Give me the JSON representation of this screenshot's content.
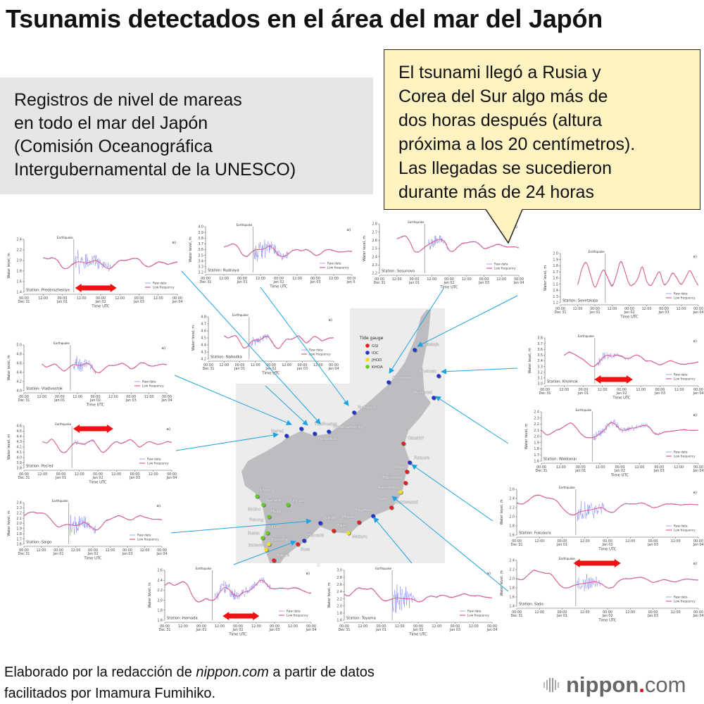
{
  "title": "Tsunamis detectados en el área del mar del Japón",
  "source_box": {
    "lines": [
      "Registros de nivel de mareas",
      "en todo el mar del Japón",
      "(Comisión Oceanográfica",
      "Intergubernamental de la UNESCO)"
    ]
  },
  "callout": {
    "lines": [
      "El tsunami llegó a Rusia y",
      "Corea del Sur algo más de",
      "dos horas después (altura",
      "próxima a los 20 centímetros).",
      "Las llegadas se sucedieron",
      "durante más de 24 horas"
    ],
    "color": "#fff3c2"
  },
  "footer": {
    "prefix": "Elaborado por la redacción de ",
    "site": "nippon.com",
    "suffix": " a partir de datos",
    "line2": "facilitados por Imamura Fumihiko."
  },
  "logo": {
    "word": "nippon",
    "dot": ".",
    "tld": "com"
  },
  "map": {
    "legend_title": "Tide gauge",
    "agencies": [
      {
        "name": "GSI",
        "color": "#e02020"
      },
      {
        "name": "IOC",
        "color": "#2233cc"
      },
      {
        "name": "JHOD",
        "color": "#f0e020"
      },
      {
        "name": "KHOA",
        "color": "#66cc22"
      }
    ],
    "stations": [
      {
        "name": "Sovetskaja",
        "agency": "IOC"
      },
      {
        "name": "Kholmsk",
        "agency": "IOC"
      },
      {
        "name": "Sosunovo",
        "agency": "IOC"
      },
      {
        "name": "Wakkanai",
        "agency": "IOC"
      },
      {
        "name": "Rudnaya",
        "agency": "IOC"
      },
      {
        "name": "Vladivostok",
        "agency": "IOC"
      },
      {
        "name": "Nahodka",
        "agency": "IOC"
      },
      {
        "name": "Preobrazheniye",
        "agency": "IOC"
      },
      {
        "name": "Pos'ed",
        "agency": "IOC"
      },
      {
        "name": "Okushiri",
        "agency": "GSI"
      },
      {
        "name": "Fukuura",
        "agency": "IOC"
      },
      {
        "name": "Oga",
        "agency": "GSI"
      },
      {
        "name": "Tobishima",
        "agency": "GSI"
      },
      {
        "name": "Awashima",
        "agency": "JHOD"
      },
      {
        "name": "Sado",
        "agency": ""
      },
      {
        "name": "Kashiwazaki",
        "agency": "GSI"
      },
      {
        "name": "Toyama",
        "agency": "IOC"
      },
      {
        "name": "Mikuni",
        "agency": "GSI"
      },
      {
        "name": "Tajiri",
        "agency": "GSI"
      },
      {
        "name": "Maizuru",
        "agency": "JHOD"
      },
      {
        "name": "Saigo",
        "agency": "IOC"
      },
      {
        "name": "Hamada",
        "agency": "IOC"
      },
      {
        "name": "Susa",
        "agency": "GSI"
      },
      {
        "name": "Kariya",
        "agency": "GSI"
      },
      {
        "name": "Tushima",
        "agency": "JHOD"
      },
      {
        "name": "Izuhara",
        "agency": "JHOD"
      },
      {
        "name": "Busan",
        "agency": "KHOA"
      },
      {
        "name": "Ulsan",
        "agency": "KHOA"
      },
      {
        "name": "Pohong",
        "agency": ""
      },
      {
        "name": "Hupo",
        "agency": "KHOA"
      },
      {
        "name": "Mukho",
        "agency": "KHOA"
      },
      {
        "name": "Ganwon",
        "agency": ""
      },
      {
        "name": "Shocho",
        "agency": "KHOA"
      },
      {
        "name": "Ulleung",
        "agency": "KHOA"
      }
    ]
  },
  "chart_data": {
    "type": "line",
    "xlabel": "Time UTC",
    "ylabel": "Water level, m",
    "panel_label": "a)",
    "earthquake_label": "Earthquake",
    "earthquake_time": "Jan 01 07:10",
    "legend": [
      "Raw data",
      "Low frequency"
    ],
    "legend_placement": "bottom-right",
    "colors": {
      "raw": "#3a44ee",
      "low_frequency": "#e0507a",
      "arrival_arrow": "#ee1111"
    },
    "x_ticks": [
      {
        "time": "00:00",
        "date": "Dec 31"
      },
      {
        "time": "12:00",
        "date": ""
      },
      {
        "time": "00:00",
        "date": "Jan 01"
      },
      {
        "time": "12:00",
        "date": ""
      },
      {
        "time": "00:00",
        "date": "Jan 02"
      },
      {
        "time": "12:00",
        "date": ""
      },
      {
        "time": "00:00",
        "date": "Jan 03"
      },
      {
        "time": "12:00",
        "date": ""
      },
      {
        "time": "00:00",
        "date": "Jan 04"
      }
    ],
    "x": [
      "Dec 31 00:00",
      "Dec 31 03:00",
      "Dec 31 06:00",
      "Dec 31 09:00",
      "Dec 31 12:00",
      "Dec 31 15:00",
      "Dec 31 18:00",
      "Dec 31 21:00",
      "Jan 01 00:00",
      "Jan 01 03:00",
      "Jan 01 06:00",
      "Jan 01 09:00",
      "Jan 01 12:00",
      "Jan 01 15:00",
      "Jan 01 18:00",
      "Jan 01 21:00",
      "Jan 02 00:00",
      "Jan 02 03:00",
      "Jan 02 06:00",
      "Jan 02 09:00",
      "Jan 02 12:00",
      "Jan 02 15:00",
      "Jan 02 18:00",
      "Jan 02 21:00",
      "Jan 03 00:00",
      "Jan 03 03:00",
      "Jan 03 06:00",
      "Jan 03 09:00",
      "Jan 03 12:00",
      "Jan 03 15:00",
      "Jan 03 18:00",
      "Jan 03 21:00",
      "Jan 04 00:00"
    ],
    "panels": [
      {
        "label": "Station: Preobrazheniye",
        "ylim": [
          1.4,
          2.4
        ],
        "yticks": [
          "1.4",
          "1.6",
          "1.8",
          "2.0",
          "2.2",
          "2.4"
        ],
        "low_frequency": [
          null,
          null,
          null,
          null,
          2.05,
          2.03,
          2.05,
          2.0,
          1.87,
          1.85,
          1.92,
          1.97,
          1.97,
          1.95,
          1.98,
          2.0,
          1.95,
          1.87,
          1.85,
          1.93,
          2.0,
          2.0,
          2.02,
          2.04,
          2.02,
          1.92,
          1.88,
          1.92,
          1.97,
          1.96,
          1.93,
          1.95,
          1.97
        ],
        "raw_max_deviation": 0.3,
        "disturbance": [
          "Jan 01 08:00",
          "Jan 02 06:00"
        ],
        "arrival_arrow": [
          "Jan 01 08:00",
          "Jan 02 10:00"
        ]
      },
      {
        "label": "Station: Rudnaya",
        "ylim": [
          3.2,
          4.0
        ],
        "yticks": [
          "3.2",
          "3.3",
          "3.4",
          "3.5",
          "3.6",
          "3.7",
          "3.8",
          "3.9",
          "4.0"
        ],
        "low_frequency": [
          null,
          null,
          null,
          null,
          3.65,
          3.67,
          3.7,
          3.65,
          3.52,
          3.48,
          3.55,
          3.6,
          3.6,
          3.62,
          3.66,
          3.6,
          3.5,
          3.48,
          3.52,
          3.58,
          3.6,
          3.58,
          3.6,
          3.56,
          3.5,
          3.52,
          3.58,
          3.6,
          3.58,
          3.56,
          3.56,
          3.57,
          3.57
        ],
        "raw_max_deviation": 0.28,
        "disturbance": [
          "Jan 01 08:00",
          "Jan 02 06:00"
        ]
      },
      {
        "label": "Station: Sosunovo",
        "ylim": [
          2.2,
          2.8
        ],
        "yticks": [
          "2.2",
          "2.3",
          "2.4",
          "2.5",
          "2.6",
          "2.7",
          "2.8"
        ],
        "low_frequency": [
          null,
          null,
          null,
          null,
          2.62,
          2.64,
          2.65,
          2.58,
          2.47,
          2.46,
          2.5,
          2.54,
          2.57,
          2.6,
          2.61,
          2.58,
          2.48,
          2.47,
          2.52,
          2.56,
          2.57,
          2.58,
          2.58,
          2.55,
          2.5,
          2.51,
          2.53,
          2.55,
          2.54,
          2.52,
          2.52,
          2.52,
          2.51
        ],
        "raw_max_deviation": 0.1,
        "disturbance": [
          "Jan 01 10:00",
          "Jan 01 23:00"
        ]
      },
      {
        "label": "Station: Sovetskaja",
        "ylim": [
          1.2,
          2.0
        ],
        "yticks": [
          "1.2",
          "1.3",
          "1.4",
          "1.5",
          "1.6",
          "1.7",
          "1.8",
          "1.9",
          "2.0"
        ],
        "low_frequency": [
          null,
          null,
          null,
          null,
          1.5,
          1.75,
          1.85,
          1.65,
          1.45,
          1.6,
          1.73,
          1.6,
          1.47,
          1.65,
          1.87,
          1.7,
          1.5,
          1.5,
          1.6,
          1.78,
          1.55,
          1.48,
          1.6,
          1.7,
          1.5,
          1.55,
          1.68,
          1.6,
          1.5,
          1.6,
          1.72,
          1.6,
          1.48
        ],
        "raw_max_deviation": 0.05,
        "disturbance": [
          "Jan 01 08:00",
          "Jan 02 06:00"
        ]
      },
      {
        "label": "Station: Nahodka",
        "ylim": [
          4.2,
          4.8
        ],
        "yticks": [
          "4.2",
          "4.3",
          "4.4",
          "4.5",
          "4.6",
          "4.7",
          "4.8"
        ],
        "low_frequency": [
          null,
          null,
          null,
          null,
          4.53,
          4.5,
          4.52,
          4.53,
          4.45,
          4.36,
          4.38,
          4.45,
          4.47,
          4.47,
          4.5,
          4.52,
          4.47,
          4.38,
          4.35,
          4.42,
          4.48,
          4.48,
          4.5,
          4.53,
          4.48,
          4.43,
          4.47,
          4.52,
          4.5,
          4.46,
          4.48,
          4.5,
          4.5
        ],
        "raw_max_deviation": 0.1,
        "disturbance": [
          "Jan 01 08:00",
          "Jan 02 03:00"
        ]
      },
      {
        "label": "Station: Vladivostok",
        "ylim": [
          4.0,
          5.0
        ],
        "yticks": [
          "4.0",
          "4.2",
          "4.4",
          "4.6",
          "4.8",
          "5.0"
        ],
        "low_frequency": [
          null,
          null,
          null,
          null,
          4.58,
          4.52,
          4.55,
          4.58,
          4.5,
          4.43,
          4.5,
          4.57,
          4.56,
          4.56,
          4.6,
          4.55,
          4.42,
          4.4,
          4.48,
          4.55,
          4.55,
          4.57,
          4.6,
          4.55,
          4.48,
          4.52,
          4.6,
          4.6,
          4.55,
          4.54,
          4.56,
          4.58,
          4.57
        ],
        "raw_max_deviation": 0.25,
        "disturbance": [
          "Jan 01 09:00",
          "Jan 02 00:00"
        ]
      },
      {
        "label": "Station: Kholmsk",
        "ylim": [
          3.0,
          3.8
        ],
        "yticks": [
          "3.0",
          "3.1",
          "3.2",
          "3.3",
          "3.4",
          "3.5",
          "3.6",
          "3.7",
          "3.8"
        ],
        "low_frequency": [
          null,
          null,
          null,
          null,
          3.5,
          3.55,
          3.52,
          3.47,
          3.42,
          3.35,
          3.3,
          3.35,
          3.45,
          3.5,
          3.48,
          3.5,
          3.48,
          3.44,
          3.46,
          3.5,
          3.47,
          3.4,
          3.4,
          3.36,
          3.33,
          3.36,
          3.4,
          3.38,
          3.35,
          3.34,
          3.35,
          3.36,
          3.38
        ],
        "raw_max_deviation": 0.1,
        "disturbance": [
          "Jan 01 08:00",
          "Jan 02 06:00"
        ],
        "arrival_arrow": [
          "Jan 01 07:00",
          "Jan 02 07:00"
        ]
      },
      {
        "label": "Station: Pos'ed",
        "ylim": [
          3.8,
          4.6
        ],
        "yticks": [
          "3.8",
          "3.9",
          "4.0",
          "4.1",
          "4.2",
          "4.3",
          "4.4",
          "4.5",
          "4.6"
        ],
        "low_frequency": [
          null,
          null,
          null,
          null,
          4.3,
          4.28,
          4.35,
          4.25,
          4.12,
          4.1,
          4.2,
          4.28,
          4.27,
          4.25,
          4.3,
          4.32,
          4.2,
          4.1,
          4.15,
          4.25,
          4.3,
          4.27,
          4.3,
          4.34,
          4.28,
          4.2,
          4.25,
          4.3,
          4.28,
          4.25,
          4.27,
          4.3,
          4.29
        ],
        "raw_max_deviation": 0.06,
        "disturbance": [
          "Jan 01 08:00",
          "Jan 02 03:00"
        ],
        "arrival_arrow": [
          "Jan 01 08:00",
          "Jan 02 10:00"
        ]
      },
      {
        "label": "Station: Wakkanai",
        "ylim": [
          1.6,
          2.4
        ],
        "yticks": [
          "1.6",
          "1.7",
          "1.8",
          "1.9",
          "2.0",
          "2.1",
          "2.2",
          "2.3",
          "2.4"
        ],
        "low_frequency": [
          2.1,
          2.03,
          2.05,
          2.1,
          2.13,
          2.18,
          2.22,
          2.15,
          2.05,
          1.99,
          1.98,
          2.0,
          2.05,
          2.12,
          2.22,
          2.2,
          2.12,
          2.1,
          2.13,
          2.14,
          2.16,
          2.18,
          2.15,
          2.05,
          2.04,
          2.07,
          2.08,
          2.09,
          2.1,
          2.11,
          2.1,
          2.1,
          2.1
        ],
        "raw_max_deviation": 0.1,
        "disturbance": [
          "Jan 01 08:00",
          "Jan 03 00:00"
        ]
      },
      {
        "label": "Station: Saigo",
        "ylim": [
          1.6,
          2.4
        ],
        "yticks": [
          "1.6",
          "1.7",
          "1.8",
          "1.9",
          "2.0",
          "2.1",
          "2.2",
          "2.3",
          "2.4"
        ],
        "low_frequency": [
          2.15,
          2.2,
          2.22,
          2.2,
          2.2,
          2.18,
          2.1,
          2.0,
          1.93,
          1.96,
          1.98,
          1.97,
          1.96,
          1.98,
          2.02,
          1.97,
          1.9,
          1.88,
          1.95,
          2.05,
          2.08,
          2.12,
          2.15,
          2.12,
          2.08,
          2.07,
          2.12,
          2.15,
          2.12,
          2.1,
          2.08,
          2.08,
          2.07
        ],
        "raw_max_deviation": 0.25,
        "disturbance": [
          "Jan 01 08:00",
          "Jan 02 02:00"
        ]
      },
      {
        "label": "Station: Fukuaura",
        "ylim": [
          1.6,
          2.6
        ],
        "yticks": [
          "1.6",
          "1.8",
          "2.0",
          "2.2",
          "2.4",
          "2.6"
        ],
        "low_frequency": [
          2.3,
          2.28,
          2.35,
          2.45,
          2.47,
          2.42,
          2.4,
          2.35,
          2.2,
          2.08,
          2.04,
          2.1,
          2.13,
          2.15,
          2.18,
          2.2,
          2.12,
          2.1,
          2.2,
          2.28,
          2.28,
          2.28,
          2.3,
          2.26,
          2.2,
          2.22,
          2.27,
          2.28,
          2.27,
          2.26,
          2.27,
          2.27,
          2.26
        ],
        "raw_max_deviation": 0.35,
        "disturbance": [
          "Jan 01 08:00",
          "Jan 01 23:00"
        ]
      },
      {
        "label": "Station: Sado",
        "ylim": [
          1.4,
          2.4
        ],
        "yticks": [
          "1.4",
          "1.6",
          "1.8",
          "2.0",
          "2.2",
          "2.4"
        ],
        "low_frequency": [
          2.0,
          1.98,
          2.08,
          2.18,
          2.15,
          2.12,
          2.1,
          1.95,
          1.82,
          1.8,
          1.85,
          1.88,
          1.9,
          1.92,
          1.93,
          1.88,
          1.8,
          1.82,
          1.95,
          2.0,
          2.0,
          2.02,
          2.03,
          1.98,
          1.92,
          1.95,
          1.98,
          1.95,
          1.93,
          1.97,
          1.99,
          1.98,
          1.97
        ],
        "raw_max_deviation": 0.3,
        "disturbance": [
          "Jan 01 08:00",
          "Jan 01 20:00"
        ],
        "arrival_arrow": [
          "Jan 01 06:00",
          "Jan 02 07:00"
        ]
      },
      {
        "label": "Station: Hamada",
        "ylim": [
          1.6,
          2.6
        ],
        "yticks": [
          "1.6",
          "1.8",
          "2.0",
          "2.2",
          "2.4",
          "2.6"
        ],
        "low_frequency": [
          2.3,
          2.35,
          2.3,
          2.33,
          2.37,
          2.3,
          2.1,
          1.98,
          1.98,
          2.03,
          2.0,
          2.02,
          2.15,
          2.25,
          2.22,
          2.12,
          2.08,
          2.15,
          2.18,
          2.22,
          2.32,
          2.4,
          2.35,
          2.25,
          2.23,
          2.24,
          2.24,
          2.23,
          2.25,
          2.24,
          2.2,
          2.16,
          2.14
        ],
        "raw_max_deviation": 0.2,
        "disturbance": [
          "Jan 01 09:00",
          "Jan 02 21:00"
        ],
        "arrival_arrow": [
          "Jan 01 14:00",
          "Jan 02 14:00"
        ]
      },
      {
        "label": "Station: Toyama",
        "ylim": [
          1.6,
          3.0
        ],
        "yticks": [
          "1.6",
          "1.8",
          "2.0",
          "2.2",
          "2.4",
          "2.6",
          "2.8",
          "3.0"
        ],
        "low_frequency": [
          2.32,
          2.28,
          2.4,
          2.5,
          2.48,
          2.47,
          2.48,
          2.35,
          2.2,
          2.14,
          2.18,
          2.22,
          2.22,
          2.2,
          2.2,
          2.18,
          2.12,
          2.15,
          2.25,
          2.27,
          2.25,
          2.3,
          2.28,
          2.24,
          2.26,
          2.3,
          2.34,
          2.3,
          2.28,
          2.29,
          2.26,
          2.24,
          2.23
        ],
        "raw_max_deviation": 0.65,
        "disturbance": [
          "Jan 01 07:30",
          "Jan 01 22:00"
        ]
      }
    ]
  }
}
